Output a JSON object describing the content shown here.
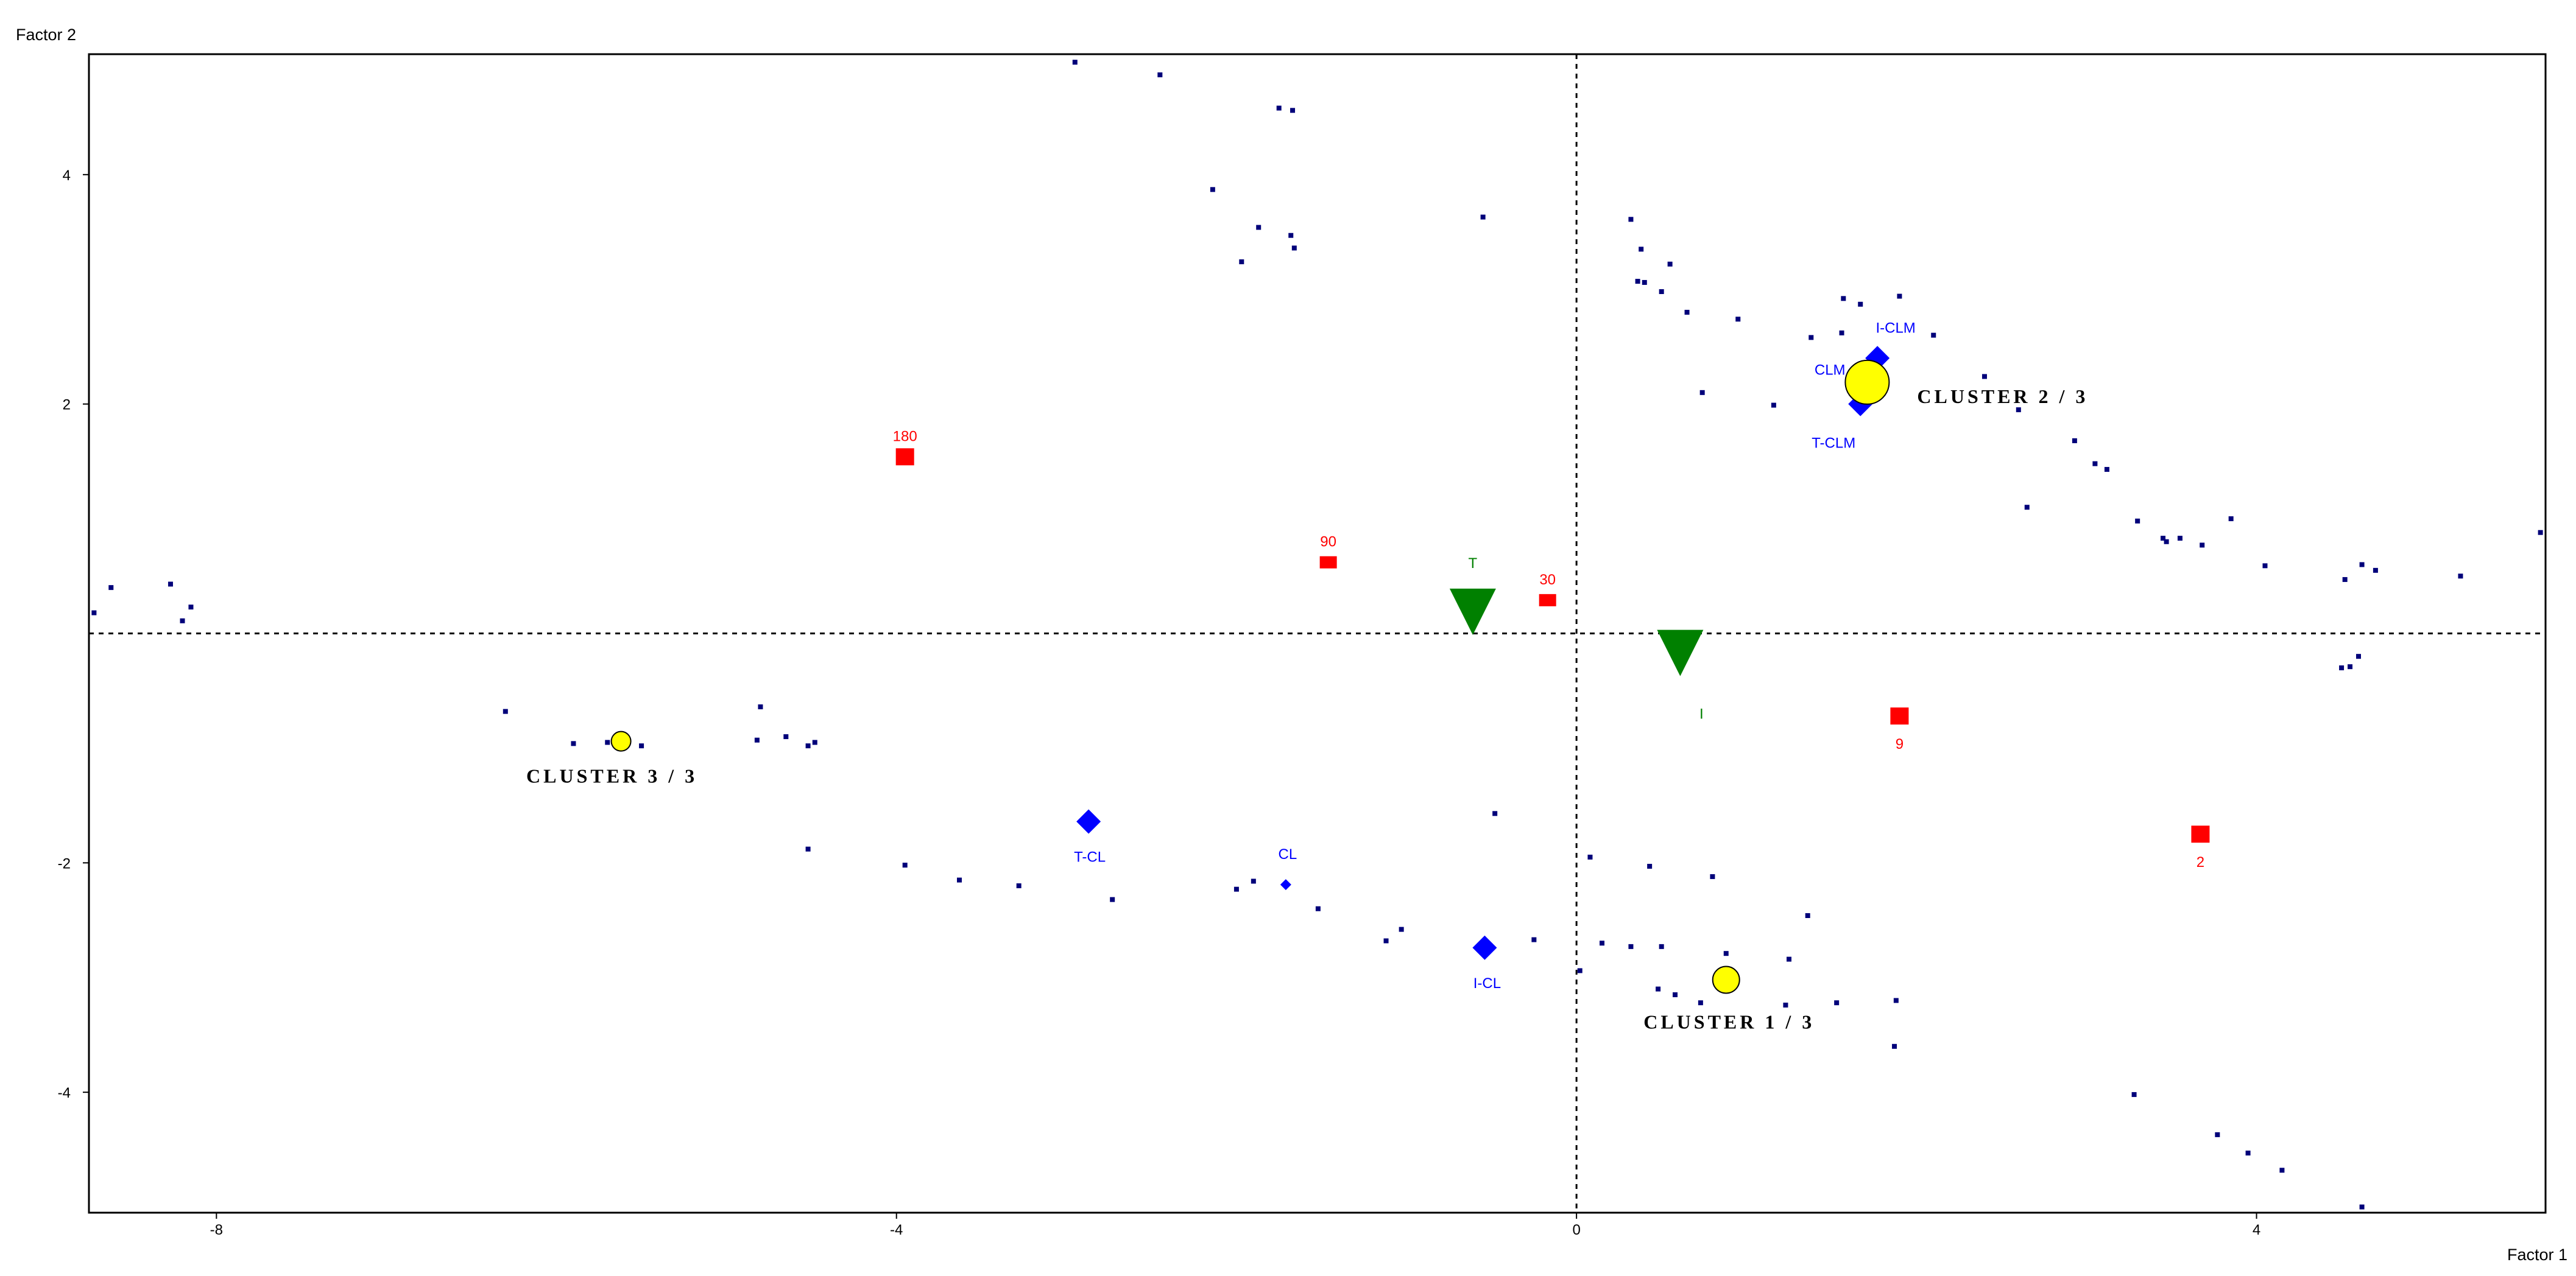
{
  "chart_data": {
    "type": "scatter",
    "xlabel": "Factor 1",
    "ylabel": "Factor 2",
    "xlim": [
      -8.75,
      5.7
    ],
    "ylim": [
      -5.05,
      5.05
    ],
    "xticks": [
      -8,
      -4,
      0,
      4
    ],
    "yticks": [
      -4,
      -2,
      2,
      4
    ],
    "tick_labels": {
      "x": [
        "-8",
        "-4",
        "0",
        "4"
      ],
      "y": [
        "-4",
        "-2",
        "2",
        "4"
      ]
    },
    "reference_lines": {
      "x": 0,
      "y": 0,
      "style": "dashed"
    },
    "colors": {
      "individuals": "#00007a",
      "modalities": "#0000ff",
      "numeric": "#ff0000",
      "types": "#008000",
      "clusters": "#ffff00"
    },
    "individuals": [
      [
        -8.72,
        0.18
      ],
      [
        -8.62,
        0.4
      ],
      [
        -8.27,
        0.43
      ],
      [
        -8.2,
        0.11
      ],
      [
        -8.15,
        0.23
      ],
      [
        -6.3,
        -0.68
      ],
      [
        -5.9,
        -0.96
      ],
      [
        -5.7,
        -0.95
      ],
      [
        -5.5,
        -0.98
      ],
      [
        -4.82,
        -0.93
      ],
      [
        -4.8,
        -0.64
      ],
      [
        -4.65,
        -0.9
      ],
      [
        -4.52,
        -0.98
      ],
      [
        -4.48,
        -0.95
      ],
      [
        -4.52,
        -1.88
      ],
      [
        -3.95,
        -2.02
      ],
      [
        -3.63,
        -2.15
      ],
      [
        -3.28,
        -2.2
      ],
      [
        -2.73,
        -2.32
      ],
      [
        -2.95,
        4.98
      ],
      [
        -2.45,
        4.87
      ],
      [
        -2.14,
        3.87
      ],
      [
        -1.87,
        3.54
      ],
      [
        -1.97,
        3.24
      ],
      [
        -1.75,
        4.58
      ],
      [
        -1.67,
        4.56
      ],
      [
        -1.68,
        3.47
      ],
      [
        -1.66,
        3.36
      ],
      [
        -2.0,
        -2.23
      ],
      [
        -1.9,
        -2.16
      ],
      [
        -1.52,
        -2.4
      ],
      [
        -1.12,
        -2.68
      ],
      [
        -1.03,
        -2.58
      ],
      [
        -0.55,
        3.63
      ],
      [
        -0.48,
        -1.57
      ],
      [
        -0.25,
        -2.67
      ],
      [
        0.02,
        -2.94
      ],
      [
        0.08,
        -1.95
      ],
      [
        0.15,
        -2.7
      ],
      [
        0.32,
        3.61
      ],
      [
        0.38,
        3.35
      ],
      [
        0.36,
        3.07
      ],
      [
        0.4,
        3.06
      ],
      [
        0.5,
        2.98
      ],
      [
        0.55,
        3.22
      ],
      [
        0.65,
        2.8
      ],
      [
        0.74,
        2.1
      ],
      [
        0.43,
        -2.03
      ],
      [
        0.32,
        -2.73
      ],
      [
        0.5,
        -2.73
      ],
      [
        0.48,
        -3.1
      ],
      [
        0.58,
        -3.15
      ],
      [
        0.8,
        -2.12
      ],
      [
        0.73,
        -3.22
      ],
      [
        0.88,
        -2.79
      ],
      [
        0.95,
        2.74
      ],
      [
        1.16,
        1.99
      ],
      [
        1.25,
        -2.84
      ],
      [
        1.23,
        -3.24
      ],
      [
        1.36,
        -2.46
      ],
      [
        1.38,
        2.58
      ],
      [
        1.53,
        -3.22
      ],
      [
        1.57,
        2.92
      ],
      [
        1.56,
        2.62
      ],
      [
        1.67,
        2.87
      ],
      [
        1.9,
        2.94
      ],
      [
        1.88,
        -3.2
      ],
      [
        1.87,
        -3.6
      ],
      [
        2.1,
        2.6
      ],
      [
        2.4,
        2.24
      ],
      [
        2.6,
        1.95
      ],
      [
        2.65,
        1.1
      ],
      [
        2.93,
        1.68
      ],
      [
        3.05,
        1.48
      ],
      [
        3.12,
        1.43
      ],
      [
        3.3,
        0.98
      ],
      [
        3.45,
        0.83
      ],
      [
        3.47,
        0.8
      ],
      [
        3.55,
        0.83
      ],
      [
        3.68,
        0.77
      ],
      [
        3.85,
        1.0
      ],
      [
        4.05,
        0.59
      ],
      [
        3.28,
        -4.02
      ],
      [
        3.77,
        -4.37
      ],
      [
        3.95,
        -4.53
      ],
      [
        4.15,
        -4.68
      ],
      [
        4.52,
        0.47
      ],
      [
        4.62,
        0.6
      ],
      [
        4.7,
        0.55
      ],
      [
        4.5,
        -0.3
      ],
      [
        4.55,
        -0.29
      ],
      [
        4.6,
        -0.2
      ],
      [
        4.62,
        -5.0
      ],
      [
        5.2,
        0.5
      ],
      [
        5.67,
        0.88
      ]
    ],
    "modalities": [
      {
        "label": "I-CLM",
        "x": 1.77,
        "y": 2.4
      },
      {
        "label": "CLM",
        "x": 1.67,
        "y": 2.15
      },
      {
        "label": "T-CLM",
        "x": 1.67,
        "y": 2.0
      },
      {
        "label": "T-CL",
        "x": -2.87,
        "y": -1.64
      },
      {
        "label": "CL",
        "x": -1.71,
        "y": -2.19
      },
      {
        "label": "I-CL",
        "x": -0.54,
        "y": -2.74
      }
    ],
    "numeric": [
      {
        "label": "180",
        "x": -3.95,
        "y": 1.54
      },
      {
        "label": "90",
        "x": -1.46,
        "y": 0.62
      },
      {
        "label": "30",
        "x": -0.17,
        "y": 0.29
      },
      {
        "label": "9",
        "x": 1.9,
        "y": -0.72
      },
      {
        "label": "2",
        "x": 3.67,
        "y": -1.75
      }
    ],
    "types": [
      {
        "label": "T",
        "x": -0.61,
        "y": 0.2
      },
      {
        "label": "I",
        "x": 0.61,
        "y": -0.16
      }
    ],
    "clusters": [
      {
        "label": "CLUSTER  2 / 3",
        "x": 1.71,
        "y": 2.19,
        "size": "large"
      },
      {
        "label": "CLUSTER  1 / 3",
        "x": 0.88,
        "y": -3.02,
        "size": "medium"
      },
      {
        "label": "CLUSTER  3 / 3",
        "x": -5.62,
        "y": -0.94,
        "size": "small"
      }
    ]
  }
}
